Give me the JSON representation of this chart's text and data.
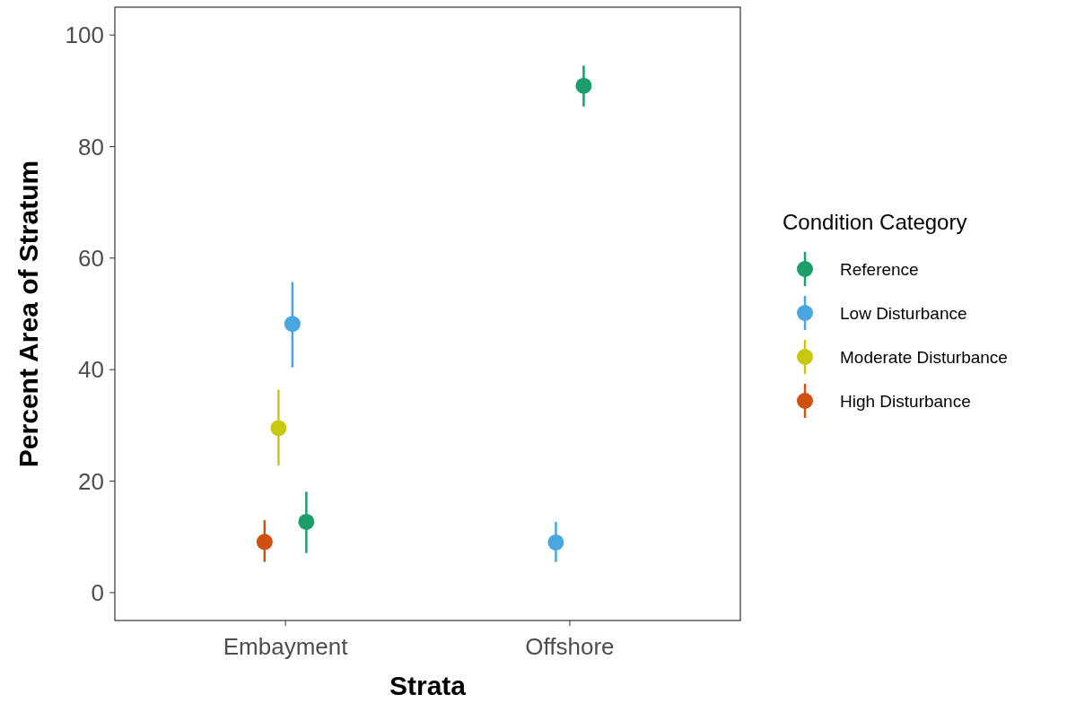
{
  "chart_data": {
    "type": "scatter",
    "xlabel": "Strata",
    "ylabel": "Percent Area of Stratum",
    "legend_title": "Condition Category",
    "legend": "right",
    "grid": false,
    "marker": "circle",
    "categories": [
      "Embayment",
      "Offshore"
    ],
    "ylim": [
      -5,
      105
    ],
    "yticks": [
      0,
      20,
      40,
      60,
      80,
      100
    ],
    "series": [
      {
        "name": "Reference",
        "color": "#1b9e69",
        "values": [
          12.7,
          90.9
        ],
        "errors": [
          [
            7.1,
            18.1
          ],
          [
            87.2,
            94.5
          ]
        ]
      },
      {
        "name": "Low Disturbance",
        "color": "#4aa6e0",
        "values": [
          48.2,
          9.0
        ],
        "errors": [
          [
            40.4,
            55.7
          ],
          [
            5.5,
            12.7
          ]
        ]
      },
      {
        "name": "Moderate Disturbance",
        "color": "#c8c811",
        "values": [
          29.5,
          null
        ],
        "errors": [
          [
            22.8,
            36.4
          ],
          null
        ]
      },
      {
        "name": "High Disturbance",
        "color": "#d0500e",
        "values": [
          9.1,
          null
        ],
        "errors": [
          [
            5.5,
            13.0
          ],
          null
        ]
      }
    ]
  }
}
